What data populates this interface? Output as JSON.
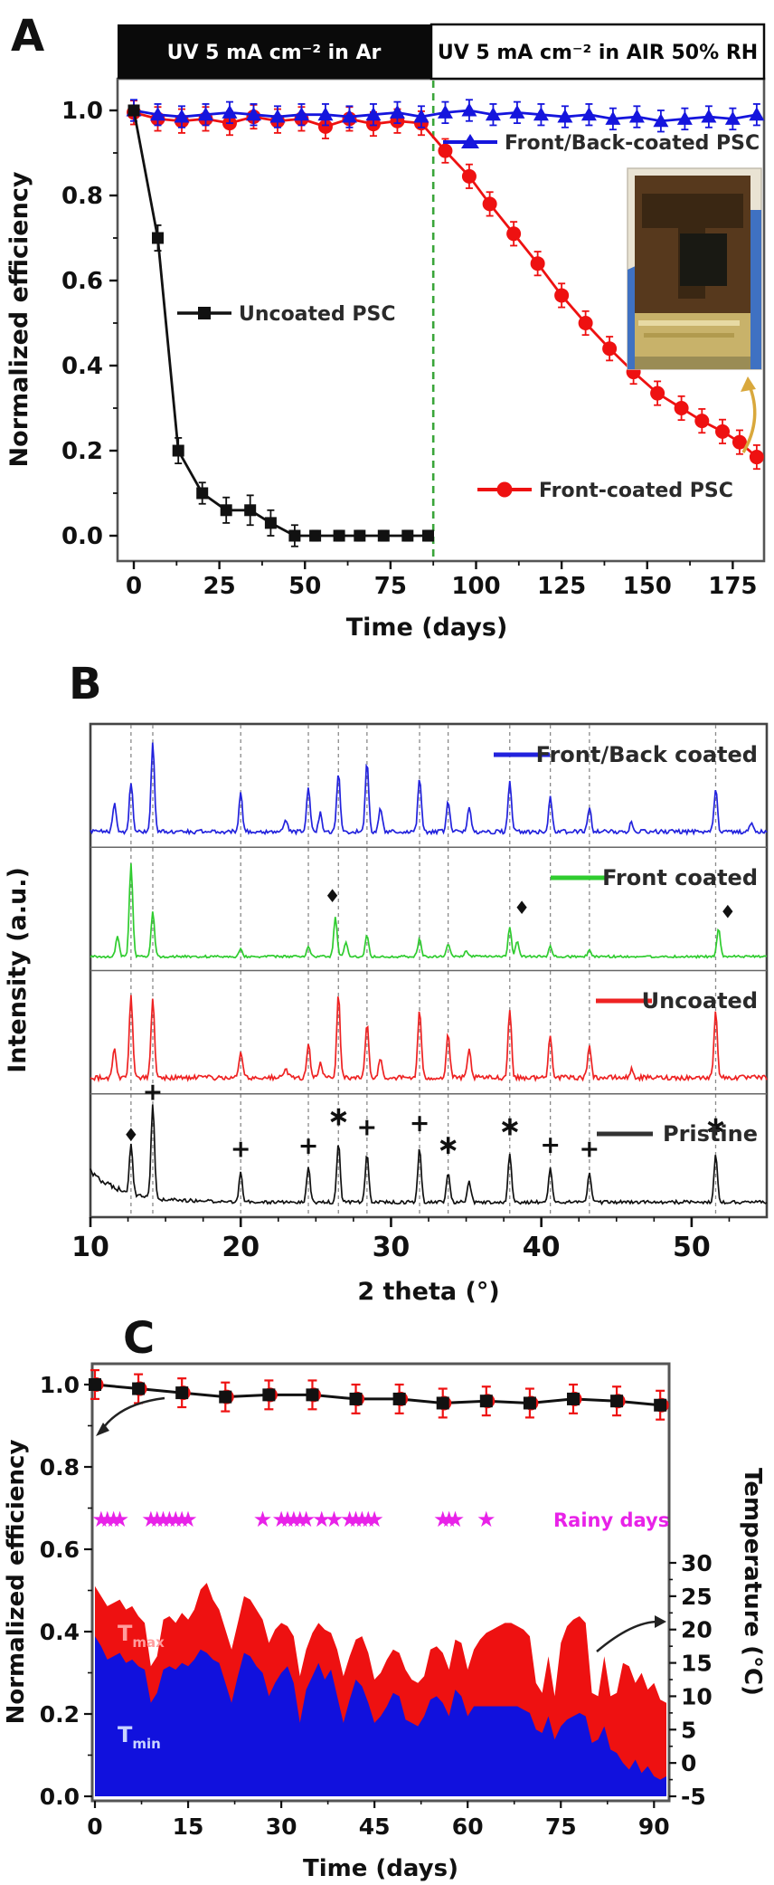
{
  "figure": {
    "background": "#ffffff"
  },
  "chart_data": [
    {
      "panel_label": "A",
      "type": "line",
      "title_left": "UV 5 mA cm⁻² in Ar",
      "title_right": "UV 5 mA cm⁻² in AIR 50% RH",
      "xlabel": "Time (days)",
      "ylabel": "Normalized efficiency",
      "xlim": [
        -4,
        184
      ],
      "ylim": [
        -0.05,
        1.05
      ],
      "xticks": [
        0,
        25,
        50,
        75,
        100,
        125,
        150,
        175
      ],
      "yticks": [
        "0.0",
        "0.2",
        "0.4",
        "0.6",
        "0.8",
        "1.0"
      ],
      "divider_day": 87.5,
      "divider_color": "#3aa53a",
      "inset": "photo of front-coated perovskite solar cell held by blue glove",
      "series": [
        {
          "name": "Front-coated PSC",
          "color": "#ee1111",
          "marker": "circle",
          "x": [
            0,
            7,
            14,
            21,
            28,
            35,
            42,
            49,
            56,
            63,
            70,
            77,
            84,
            91,
            98,
            104,
            111,
            118,
            125,
            132,
            139,
            146,
            153,
            160,
            166,
            172,
            177,
            182
          ],
          "y": [
            0.995,
            0.98,
            0.975,
            0.98,
            0.97,
            0.985,
            0.975,
            0.98,
            0.962,
            0.98,
            0.968,
            0.975,
            0.97,
            0.905,
            0.845,
            0.78,
            0.71,
            0.64,
            0.565,
            0.5,
            0.44,
            0.385,
            0.335,
            0.3,
            0.27,
            0.245,
            0.22,
            0.185
          ],
          "err": 0.028
        },
        {
          "name": "Front/Back-coated PSC",
          "color": "#1515dd",
          "marker": "triangle",
          "x": [
            0,
            7,
            14,
            21,
            28,
            35,
            42,
            49,
            56,
            63,
            70,
            77,
            84,
            91,
            98,
            105,
            112,
            119,
            126,
            133,
            140,
            147,
            154,
            161,
            168,
            175,
            182
          ],
          "y": [
            1.0,
            0.99,
            0.985,
            0.99,
            0.995,
            0.99,
            0.985,
            0.99,
            0.99,
            0.985,
            0.99,
            0.995,
            0.985,
            0.995,
            1.0,
            0.99,
            0.995,
            0.99,
            0.985,
            0.99,
            0.98,
            0.985,
            0.975,
            0.98,
            0.985,
            0.98,
            0.99
          ],
          "err": 0.025
        },
        {
          "name": "Uncoated PSC",
          "color": "#111111",
          "marker": "square",
          "x": [
            0,
            7,
            13,
            20,
            27,
            34,
            40,
            47,
            53,
            60,
            66,
            73,
            80,
            86
          ],
          "y": [
            1.0,
            0.7,
            0.2,
            0.1,
            0.06,
            0.06,
            0.03,
            0,
            0,
            0,
            0,
            0,
            0,
            0
          ],
          "err": [
            0.012,
            0.03,
            0.03,
            0.025,
            0.03,
            0.035,
            0.03,
            0.025,
            0.012,
            0.012,
            0.012,
            0.012,
            0.012,
            0.012
          ]
        }
      ]
    },
    {
      "panel_label": "B",
      "type": "line",
      "xlabel": "2 theta (°)",
      "ylabel": "Intensity (a.u.)",
      "xlim": [
        10,
        55
      ],
      "xticks": [
        10,
        20,
        30,
        40,
        50
      ],
      "gridlines": [
        12.7,
        14.15,
        20.0,
        24.5,
        26.5,
        28.4,
        31.9,
        33.8,
        37.9,
        40.6,
        43.2,
        51.6
      ],
      "traces": [
        {
          "name": "Front/Back coated",
          "color": "#2222dd",
          "noise": 0.06,
          "peaks": [
            [
              11.6,
              0.3
            ],
            [
              12.7,
              0.5
            ],
            [
              14.15,
              0.9
            ],
            [
              20,
              0.4
            ],
            [
              23,
              0.12
            ],
            [
              24.5,
              0.45
            ],
            [
              25.3,
              0.2
            ],
            [
              26.5,
              0.6
            ],
            [
              28.4,
              0.7
            ],
            [
              29.3,
              0.25
            ],
            [
              31.9,
              0.55
            ],
            [
              33.8,
              0.3
            ],
            [
              35.2,
              0.25
            ],
            [
              37.9,
              0.5
            ],
            [
              40.6,
              0.35
            ],
            [
              43.2,
              0.25
            ],
            [
              46,
              0.1
            ],
            [
              51.6,
              0.45
            ],
            [
              54,
              0.1
            ]
          ],
          "marks": []
        },
        {
          "name": "Front coated",
          "color": "#2fcc2f",
          "noise": 0.035,
          "peaks": [
            [
              11.8,
              0.2
            ],
            [
              12.7,
              0.95
            ],
            [
              14.15,
              0.45
            ],
            [
              20,
              0.08
            ],
            [
              24.5,
              0.1
            ],
            [
              26.3,
              0.4
            ],
            [
              27.0,
              0.15
            ],
            [
              28.4,
              0.22
            ],
            [
              31.9,
              0.18
            ],
            [
              33.8,
              0.13
            ],
            [
              35,
              0.06
            ],
            [
              37.9,
              0.3
            ],
            [
              38.4,
              0.15
            ],
            [
              40.6,
              0.1
            ],
            [
              43.2,
              0.06
            ],
            [
              51.8,
              0.28
            ]
          ],
          "marks": [
            [
              "♦",
              26.1,
              0.52
            ],
            [
              "♦",
              38.7,
              0.4
            ],
            [
              "♦",
              52.4,
              0.36
            ]
          ]
        },
        {
          "name": "Uncoated",
          "color": "#ee2222",
          "noise": 0.07,
          "peaks": [
            [
              11.6,
              0.3
            ],
            [
              12.7,
              0.85
            ],
            [
              14.15,
              0.8
            ],
            [
              20,
              0.28
            ],
            [
              23,
              0.1
            ],
            [
              24.5,
              0.35
            ],
            [
              25.3,
              0.15
            ],
            [
              26.5,
              0.85
            ],
            [
              28.4,
              0.55
            ],
            [
              29.3,
              0.2
            ],
            [
              31.9,
              0.7
            ],
            [
              33.8,
              0.45
            ],
            [
              35.2,
              0.28
            ],
            [
              37.9,
              0.7
            ],
            [
              40.6,
              0.45
            ],
            [
              43.2,
              0.35
            ],
            [
              46,
              0.08
            ],
            [
              51.6,
              0.7
            ]
          ],
          "marks": []
        },
        {
          "name": "Pristine",
          "color": "#111111",
          "noise": 0.05,
          "decay": 0.3,
          "peaks": [
            [
              12.7,
              0.5
            ],
            [
              14.15,
              0.95
            ],
            [
              20,
              0.3
            ],
            [
              24.5,
              0.35
            ],
            [
              26.5,
              0.6
            ],
            [
              28.4,
              0.5
            ],
            [
              31.9,
              0.55
            ],
            [
              33.8,
              0.3
            ],
            [
              35.2,
              0.22
            ],
            [
              37.9,
              0.5
            ],
            [
              40.6,
              0.35
            ],
            [
              43.2,
              0.3
            ],
            [
              51.6,
              0.5
            ]
          ],
          "marks": [
            [
              "♦",
              12.7,
              0.6
            ],
            [
              "+",
              14.15,
              1.02
            ],
            [
              "+",
              20,
              0.44
            ],
            [
              "+",
              24.5,
              0.47
            ],
            [
              "∗",
              26.5,
              0.76
            ],
            [
              "+",
              28.4,
              0.66
            ],
            [
              "+",
              31.9,
              0.7
            ],
            [
              "∗",
              33.8,
              0.47
            ],
            [
              "∗",
              37.9,
              0.66
            ],
            [
              "+",
              40.6,
              0.48
            ],
            [
              "+",
              43.2,
              0.44
            ],
            [
              "∗",
              51.6,
              0.66
            ]
          ]
        }
      ]
    },
    {
      "panel_label": "C",
      "type": "line+area",
      "xlabel": "Time (days)",
      "ylabel": "Normalized efficiency",
      "ylabel_right": "Temperature (°C)",
      "xlim": [
        0,
        93
      ],
      "xticks": [
        0,
        15,
        30,
        45,
        60,
        75,
        90
      ],
      "yticks": [
        "0.0",
        "0.2",
        "0.4",
        "0.6",
        "0.8",
        "1.0"
      ],
      "yticks_right": [
        -5,
        0,
        5,
        10,
        15,
        20,
        25,
        30
      ],
      "efficiency": {
        "color": "#111111",
        "err_color": "#ee1111",
        "x": [
          0,
          7,
          14,
          21,
          28,
          35,
          42,
          49,
          56,
          63,
          70,
          77,
          84,
          91
        ],
        "y": [
          1.0,
          0.99,
          0.98,
          0.97,
          0.975,
          0.975,
          0.965,
          0.965,
          0.955,
          0.96,
          0.955,
          0.965,
          0.96,
          0.95
        ],
        "err": 0.035
      },
      "rainy": {
        "label": "Rainy days",
        "color": "#e822e8",
        "symbol": "★",
        "y": 0.675,
        "days": [
          1,
          2,
          3,
          4,
          9,
          10,
          11,
          12,
          13,
          14,
          15,
          27,
          30,
          31,
          32,
          33,
          34,
          36.5,
          38.5,
          41,
          42,
          43,
          44,
          45,
          56,
          57,
          58,
          63
        ]
      },
      "tmax": {
        "label_main": "T",
        "label_sub": "max",
        "color": "#ee1111",
        "values": [
          26.5,
          25,
          23.5,
          24,
          24.5,
          23,
          23.5,
          22,
          21,
          14.5,
          16,
          21.5,
          22,
          21,
          22.5,
          21.5,
          23,
          26,
          27,
          24.5,
          23,
          20,
          17,
          21,
          25,
          24.5,
          23,
          21.5,
          18,
          20,
          21,
          20.5,
          19,
          13,
          17,
          19.5,
          21,
          20,
          19.5,
          17,
          13,
          16,
          18.5,
          19,
          16.5,
          12.5,
          13.5,
          15.5,
          17,
          16.5,
          14,
          12.5,
          12,
          13,
          17,
          17.5,
          16.5,
          14,
          18.5,
          18,
          14,
          17,
          18.5,
          19.5,
          20,
          20.5,
          21,
          21,
          20.5,
          20,
          19,
          12,
          10.5,
          16,
          10,
          18,
          20.5,
          21.5,
          22,
          21,
          10.5,
          10,
          16,
          10,
          10.5,
          15,
          14.5,
          12,
          13.5,
          11,
          12,
          9.5,
          9
        ]
      },
      "tmin": {
        "label_main": "T",
        "label_sub": "min",
        "color": "#1111dd",
        "values": [
          19,
          17.5,
          15.5,
          16,
          16.5,
          15,
          15.5,
          14.5,
          14,
          9,
          10.5,
          14,
          14.5,
          14,
          15,
          14.5,
          15.5,
          17,
          16.5,
          15.5,
          15,
          12,
          9,
          13,
          16.5,
          16,
          14.5,
          13.5,
          10,
          12,
          13.5,
          14.5,
          12,
          6,
          11,
          13,
          15,
          12.5,
          14,
          10,
          6,
          9.5,
          12.5,
          11.5,
          9,
          6,
          7,
          8.5,
          10.5,
          10,
          6.5,
          6,
          5.5,
          7,
          9.5,
          10,
          9,
          7,
          11,
          10,
          7,
          8.5,
          8.5,
          8.5,
          8.5,
          8.5,
          8.5,
          8.5,
          8.5,
          8,
          7.5,
          5,
          4.5,
          7,
          3.5,
          5.5,
          6.5,
          7,
          7.5,
          7,
          3,
          3.5,
          5.5,
          2,
          1.5,
          0,
          -1,
          0.5,
          -1.5,
          -0.5,
          -2,
          -2.5,
          -2
        ]
      }
    }
  ]
}
